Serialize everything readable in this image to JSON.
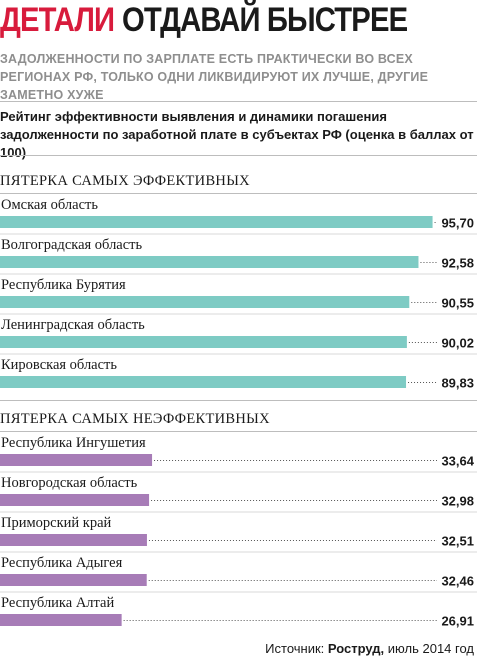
{
  "header": {
    "label": "ДЕТАЛИ",
    "title": "ОТДАВАЙ БЫСТРЕЕ",
    "lead": "ЗАДОЛЖЕННОСТИ ПО ЗАРПЛАТЕ ЕСТЬ ПРАКТИЧЕСКИ ВО ВСЕХ РЕГИОНАХ РФ, ТОЛЬКО ОДНИ ЛИКВИДИРУЮТ ИХ ЛУЧШЕ, ДРУГИЕ ЗАМЕТНО ХУЖЕ"
  },
  "colors": {
    "accent": "#d81b3c",
    "effective": "#7ecbc4",
    "ineffective": "#a77cb7"
  },
  "chart_data": {
    "type": "bar",
    "orientation": "horizontal",
    "title": "Рейтинг эффективности выявления и динамики погашения задолженности по заработной плате в субъектах РФ (оценка в баллах от 100)",
    "xlim": [
      0,
      100
    ],
    "groups": [
      {
        "name": "ПЯТЕРКА САМЫХ ЭФФЕКТИВНЫХ",
        "color": "#7ecbc4",
        "categories": [
          "Омская область",
          "Волгоградская область",
          "Республика Бурятия",
          "Ленинградская область",
          "Кировская область"
        ],
        "values": [
          95.7,
          92.58,
          90.55,
          90.02,
          89.83
        ],
        "labels": [
          "95,70",
          "92,58",
          "90,55",
          "90,02",
          "89,83"
        ]
      },
      {
        "name": "ПЯТЕРКА САМЫХ НЕЭФФЕКТИВНЫХ",
        "color": "#a77cb7",
        "categories": [
          "Республика Ингушетия",
          "Новгородская область",
          "Приморский край",
          "Республика Адыгея",
          "Республика Алтай"
        ],
        "values": [
          33.64,
          32.98,
          32.51,
          32.46,
          26.91
        ],
        "labels": [
          "33,64",
          "32,98",
          "32,51",
          "32,46",
          "26,91"
        ]
      }
    ]
  },
  "source": {
    "prefix": "Источник: ",
    "name": "Роструд,",
    "date": " июль 2014 год"
  }
}
